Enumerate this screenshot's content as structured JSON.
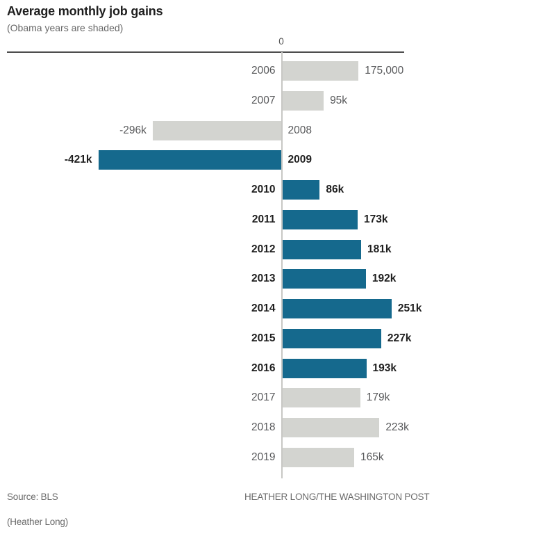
{
  "header": {
    "title": "Average monthly job gains",
    "subtitle": "(Obama years are shaded)"
  },
  "axis": {
    "zero_label": "0"
  },
  "chart_data": {
    "type": "bar",
    "orientation": "horizontal",
    "title": "Average monthly job gains",
    "subtitle": "(Obama years are shaded)",
    "categories": [
      "2006",
      "2007",
      "2008",
      "2009",
      "2010",
      "2011",
      "2012",
      "2013",
      "2014",
      "2015",
      "2016",
      "2017",
      "2018",
      "2019"
    ],
    "values": [
      175000,
      95000,
      -296000,
      -421000,
      86000,
      173000,
      181000,
      192000,
      251000,
      227000,
      193000,
      179000,
      223000,
      165000
    ],
    "value_labels": [
      "175,000",
      "95k",
      "-296k",
      "-421k",
      "86k",
      "173k",
      "181k",
      "192k",
      "251k",
      "227k",
      "193k",
      "179k",
      "223k",
      "165k"
    ],
    "highlighted": [
      false,
      false,
      false,
      true,
      true,
      true,
      true,
      true,
      true,
      true,
      true,
      false,
      false,
      false
    ],
    "highlight_meaning": "Obama years are shaded",
    "colors": {
      "obama_bar": "#15698d",
      "other_bar": "#d3d4d0",
      "bold_text": "#1f1f1f",
      "regular_text": "#58595b"
    },
    "xlim": [
      -450000,
      300000
    ],
    "grid": false,
    "legend_position": "none"
  },
  "footer": {
    "source": "Source: BLS",
    "credit": "HEATHER LONG/THE WASHINGTON POST",
    "caption": "(Heather Long)"
  }
}
